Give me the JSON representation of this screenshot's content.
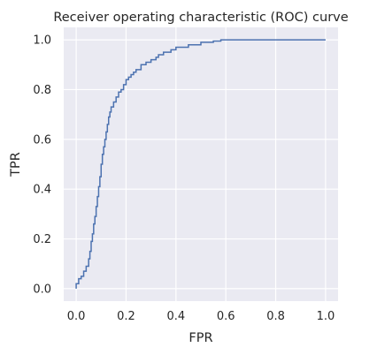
{
  "chart_data": {
    "type": "line",
    "title": "Receiver operating characteristic (ROC) curve",
    "xlabel": "FPR",
    "ylabel": "TPR",
    "xlim": [
      -0.05,
      1.05
    ],
    "ylim": [
      -0.05,
      1.05
    ],
    "xticks": [
      0.0,
      0.2,
      0.4,
      0.6,
      0.8,
      1.0
    ],
    "yticks": [
      0.0,
      0.2,
      0.4,
      0.6,
      0.8,
      1.0
    ],
    "xtick_labels": [
      "0.0",
      "0.2",
      "0.4",
      "0.6",
      "0.8",
      "1.0"
    ],
    "ytick_labels": [
      "0.0",
      "0.2",
      "0.4",
      "0.6",
      "0.8",
      "1.0"
    ],
    "grid": true,
    "background": "#eaeaf2",
    "grid_color": "#ffffff",
    "series": [
      {
        "color": "#4c72b0",
        "x": [
          0.0,
          0.0,
          0.01,
          0.01,
          0.02,
          0.02,
          0.03,
          0.03,
          0.04,
          0.04,
          0.05,
          0.05,
          0.055,
          0.055,
          0.06,
          0.06,
          0.065,
          0.065,
          0.07,
          0.07,
          0.075,
          0.075,
          0.08,
          0.08,
          0.085,
          0.085,
          0.09,
          0.09,
          0.095,
          0.095,
          0.1,
          0.1,
          0.105,
          0.105,
          0.11,
          0.11,
          0.115,
          0.115,
          0.12,
          0.12,
          0.125,
          0.125,
          0.13,
          0.13,
          0.135,
          0.135,
          0.14,
          0.14,
          0.15,
          0.15,
          0.16,
          0.16,
          0.17,
          0.17,
          0.18,
          0.18,
          0.19,
          0.19,
          0.2,
          0.2,
          0.21,
          0.21,
          0.22,
          0.22,
          0.23,
          0.23,
          0.24,
          0.24,
          0.26,
          0.26,
          0.28,
          0.28,
          0.3,
          0.3,
          0.32,
          0.32,
          0.33,
          0.33,
          0.35,
          0.35,
          0.38,
          0.38,
          0.4,
          0.4,
          0.45,
          0.45,
          0.5,
          0.5,
          0.55,
          0.55,
          0.58,
          0.58,
          1.0
        ],
        "y": [
          0.0,
          0.02,
          0.02,
          0.04,
          0.04,
          0.05,
          0.05,
          0.07,
          0.07,
          0.09,
          0.09,
          0.12,
          0.12,
          0.15,
          0.15,
          0.19,
          0.19,
          0.22,
          0.22,
          0.26,
          0.26,
          0.29,
          0.29,
          0.33,
          0.33,
          0.37,
          0.37,
          0.41,
          0.41,
          0.45,
          0.45,
          0.5,
          0.5,
          0.54,
          0.54,
          0.57,
          0.57,
          0.6,
          0.6,
          0.63,
          0.63,
          0.66,
          0.66,
          0.69,
          0.69,
          0.71,
          0.71,
          0.73,
          0.73,
          0.75,
          0.75,
          0.77,
          0.77,
          0.79,
          0.79,
          0.8,
          0.8,
          0.82,
          0.82,
          0.84,
          0.84,
          0.85,
          0.85,
          0.86,
          0.86,
          0.87,
          0.87,
          0.88,
          0.88,
          0.9,
          0.9,
          0.91,
          0.91,
          0.92,
          0.92,
          0.93,
          0.93,
          0.94,
          0.94,
          0.95,
          0.95,
          0.96,
          0.96,
          0.97,
          0.97,
          0.98,
          0.98,
          0.99,
          0.99,
          0.995,
          0.995,
          1.0,
          1.0
        ]
      }
    ]
  }
}
